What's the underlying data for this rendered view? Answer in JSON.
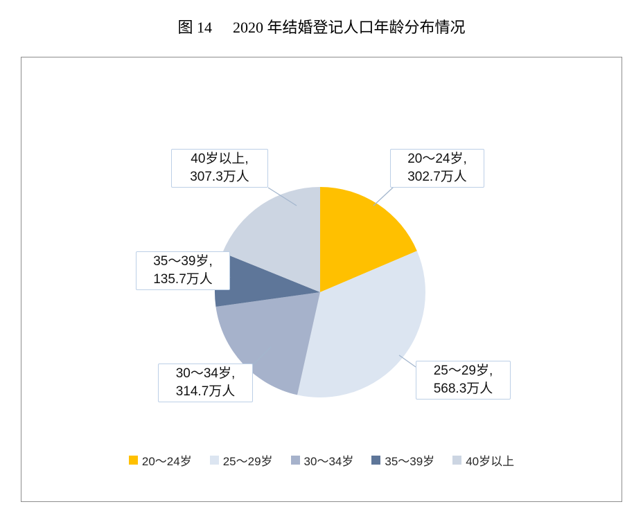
{
  "figure": {
    "label": "图 14",
    "title": "2020 年结婚登记人口年龄分布情况"
  },
  "chart_data": {
    "type": "pie",
    "title": "2020 年结婚登记人口年龄分布情况",
    "unit": "万人",
    "categories": [
      "20〜24岁",
      "25〜29岁",
      "30〜34岁",
      "35〜39岁",
      "40岁以上"
    ],
    "values": [
      302.7,
      568.3,
      314.7,
      135.7,
      307.3
    ],
    "colors": [
      "#FFC000",
      "#DCE5F1",
      "#A6B2CB",
      "#5E7699",
      "#CCD5E2"
    ],
    "start_angle": "12-o'clock",
    "direction": "clockwise",
    "legend_position": "bottom",
    "callouts": [
      {
        "line1": "20〜24岁,",
        "line2": "302.7万人"
      },
      {
        "line1": "25〜29岁,",
        "line2": "568.3万人"
      },
      {
        "line1": "30〜34岁,",
        "line2": "314.7万人"
      },
      {
        "line1": "35〜39岁,",
        "line2": "135.7万人"
      },
      {
        "line1": "40岁以上,",
        "line2": "307.3万人"
      }
    ],
    "styles": {
      "callout_border": "#BCCFE6",
      "leader_line": "#A3B6CD",
      "frame_border": "#8C8C8C"
    }
  }
}
